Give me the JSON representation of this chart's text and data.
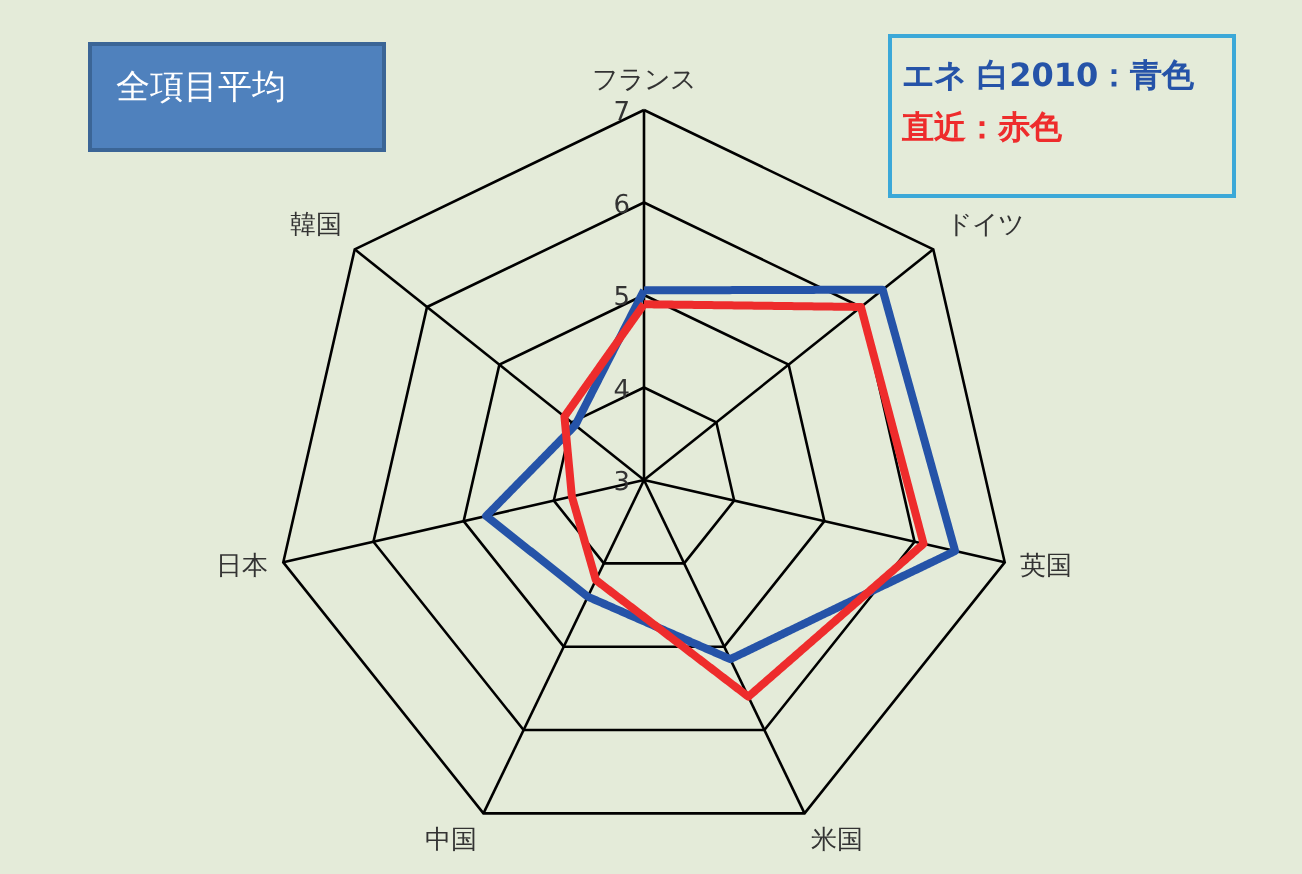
{
  "chart_data": {
    "type": "radar",
    "title": "全項目平均",
    "categories": [
      "フランス",
      "ドイツ",
      "英国",
      "米国",
      "中国",
      "日本",
      "韓国"
    ],
    "ylim": [
      3,
      7
    ],
    "yticks": [
      3,
      4,
      5,
      6,
      7
    ],
    "grid": true,
    "legend": "top right",
    "marker": "none",
    "line_style": "solid",
    "series": [
      {
        "name": "エネ 白2010：青色",
        "color": "#2553a8",
        "values": [
          5.05,
          6.3,
          6.45,
          5.15,
          4.4,
          4.75,
          3.95
        ]
      },
      {
        "name": "直近：赤色",
        "color": "#ee2c2c",
        "values": [
          4.9,
          6.0,
          6.1,
          5.6,
          4.2,
          3.8,
          4.1
        ]
      }
    ]
  }
}
